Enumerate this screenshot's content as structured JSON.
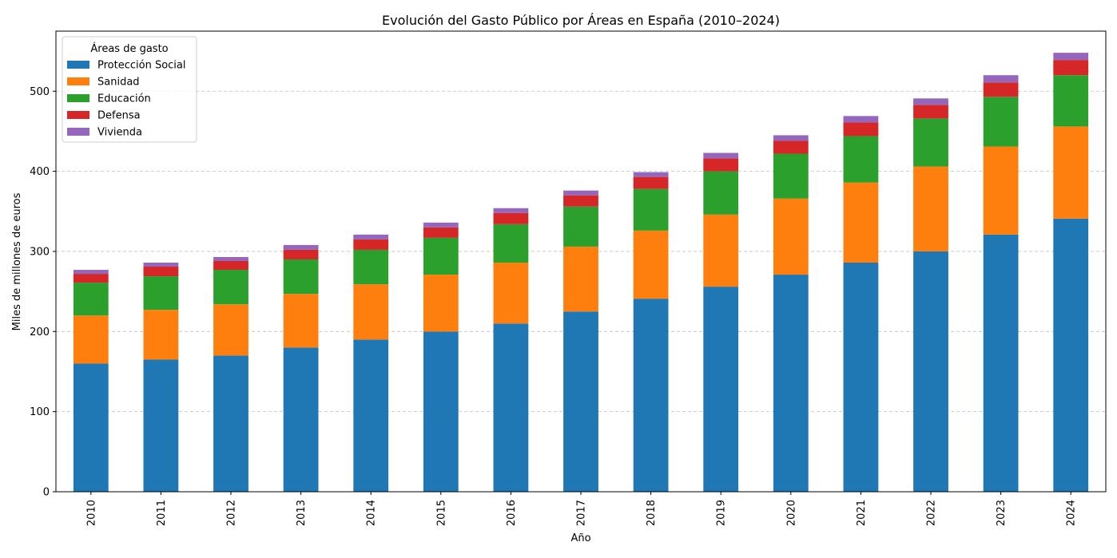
{
  "chart_data": {
    "type": "bar",
    "stacked": true,
    "title": "Evolución del Gasto Público por Áreas en España (2010–2024)",
    "xlabel": "Año",
    "ylabel": "Miles de millones de euros",
    "ylim": [
      0,
      575
    ],
    "yticks": [
      0,
      100,
      200,
      300,
      400,
      500
    ],
    "grid": "horizontal dashed",
    "legend": {
      "title": "Áreas de gasto",
      "placement": "top-left"
    },
    "categories": [
      "2010",
      "2011",
      "2012",
      "2013",
      "2014",
      "2015",
      "2016",
      "2017",
      "2018",
      "2019",
      "2020",
      "2021",
      "2022",
      "2023",
      "2024"
    ],
    "series": [
      {
        "name": "Protección Social",
        "color": "#1f77b4",
        "values": [
          160,
          165,
          170,
          180,
          190,
          200,
          210,
          225,
          241,
          256,
          271,
          286,
          300,
          321,
          341
        ]
      },
      {
        "name": "Sanidad",
        "color": "#ff7f0e",
        "values": [
          60,
          62,
          64,
          67,
          69,
          71,
          76,
          81,
          85,
          90,
          95,
          100,
          106,
          110,
          115
        ]
      },
      {
        "name": "Educación",
        "color": "#2ca02c",
        "values": [
          41,
          42,
          43,
          43,
          43,
          46,
          48,
          50,
          52,
          54,
          56,
          58,
          60,
          62,
          64
        ]
      },
      {
        "name": "Defensa",
        "color": "#d62728",
        "values": [
          11,
          12,
          11,
          12,
          13,
          13,
          14,
          14,
          15,
          16,
          16,
          17,
          17,
          18,
          19
        ]
      },
      {
        "name": "Vivienda",
        "color": "#9467bd",
        "values": [
          5,
          5,
          5,
          6,
          6,
          6,
          6,
          6,
          6,
          7,
          7,
          8,
          8,
          9,
          9
        ]
      }
    ]
  }
}
